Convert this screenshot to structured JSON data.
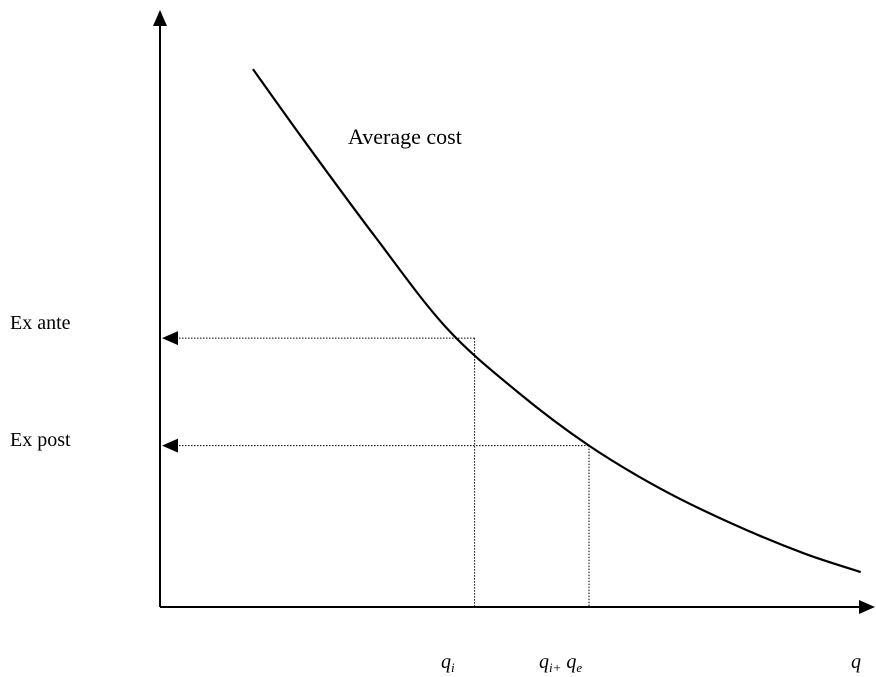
{
  "chart_data": {
    "type": "line",
    "title": "",
    "xlabel": "q",
    "ylabel": "",
    "grid": false,
    "series": [
      {
        "name": "Average cost",
        "x": [
          0.13,
          0.2,
          0.3,
          0.4,
          0.5,
          0.6,
          0.7,
          0.8,
          0.9,
          0.98
        ],
        "y": [
          1.0,
          0.87,
          0.69,
          0.52,
          0.4,
          0.3,
          0.22,
          0.155,
          0.1,
          0.065
        ]
      }
    ],
    "ticks_x": [
      {
        "base": "q",
        "sub": "i",
        "x": 0.44
      },
      {
        "base": "q",
        "sub": "i+",
        "base2": "q",
        "sub2": "e",
        "x": 0.6
      }
    ],
    "ticks_y": [
      {
        "label": "Ex ante",
        "y": 0.5,
        "from_x": 0.44
      },
      {
        "label": "Ex post",
        "y": 0.3,
        "from_x": 0.6
      }
    ],
    "xlim": [
      0,
      1
    ],
    "ylim": [
      0,
      1.11
    ]
  }
}
